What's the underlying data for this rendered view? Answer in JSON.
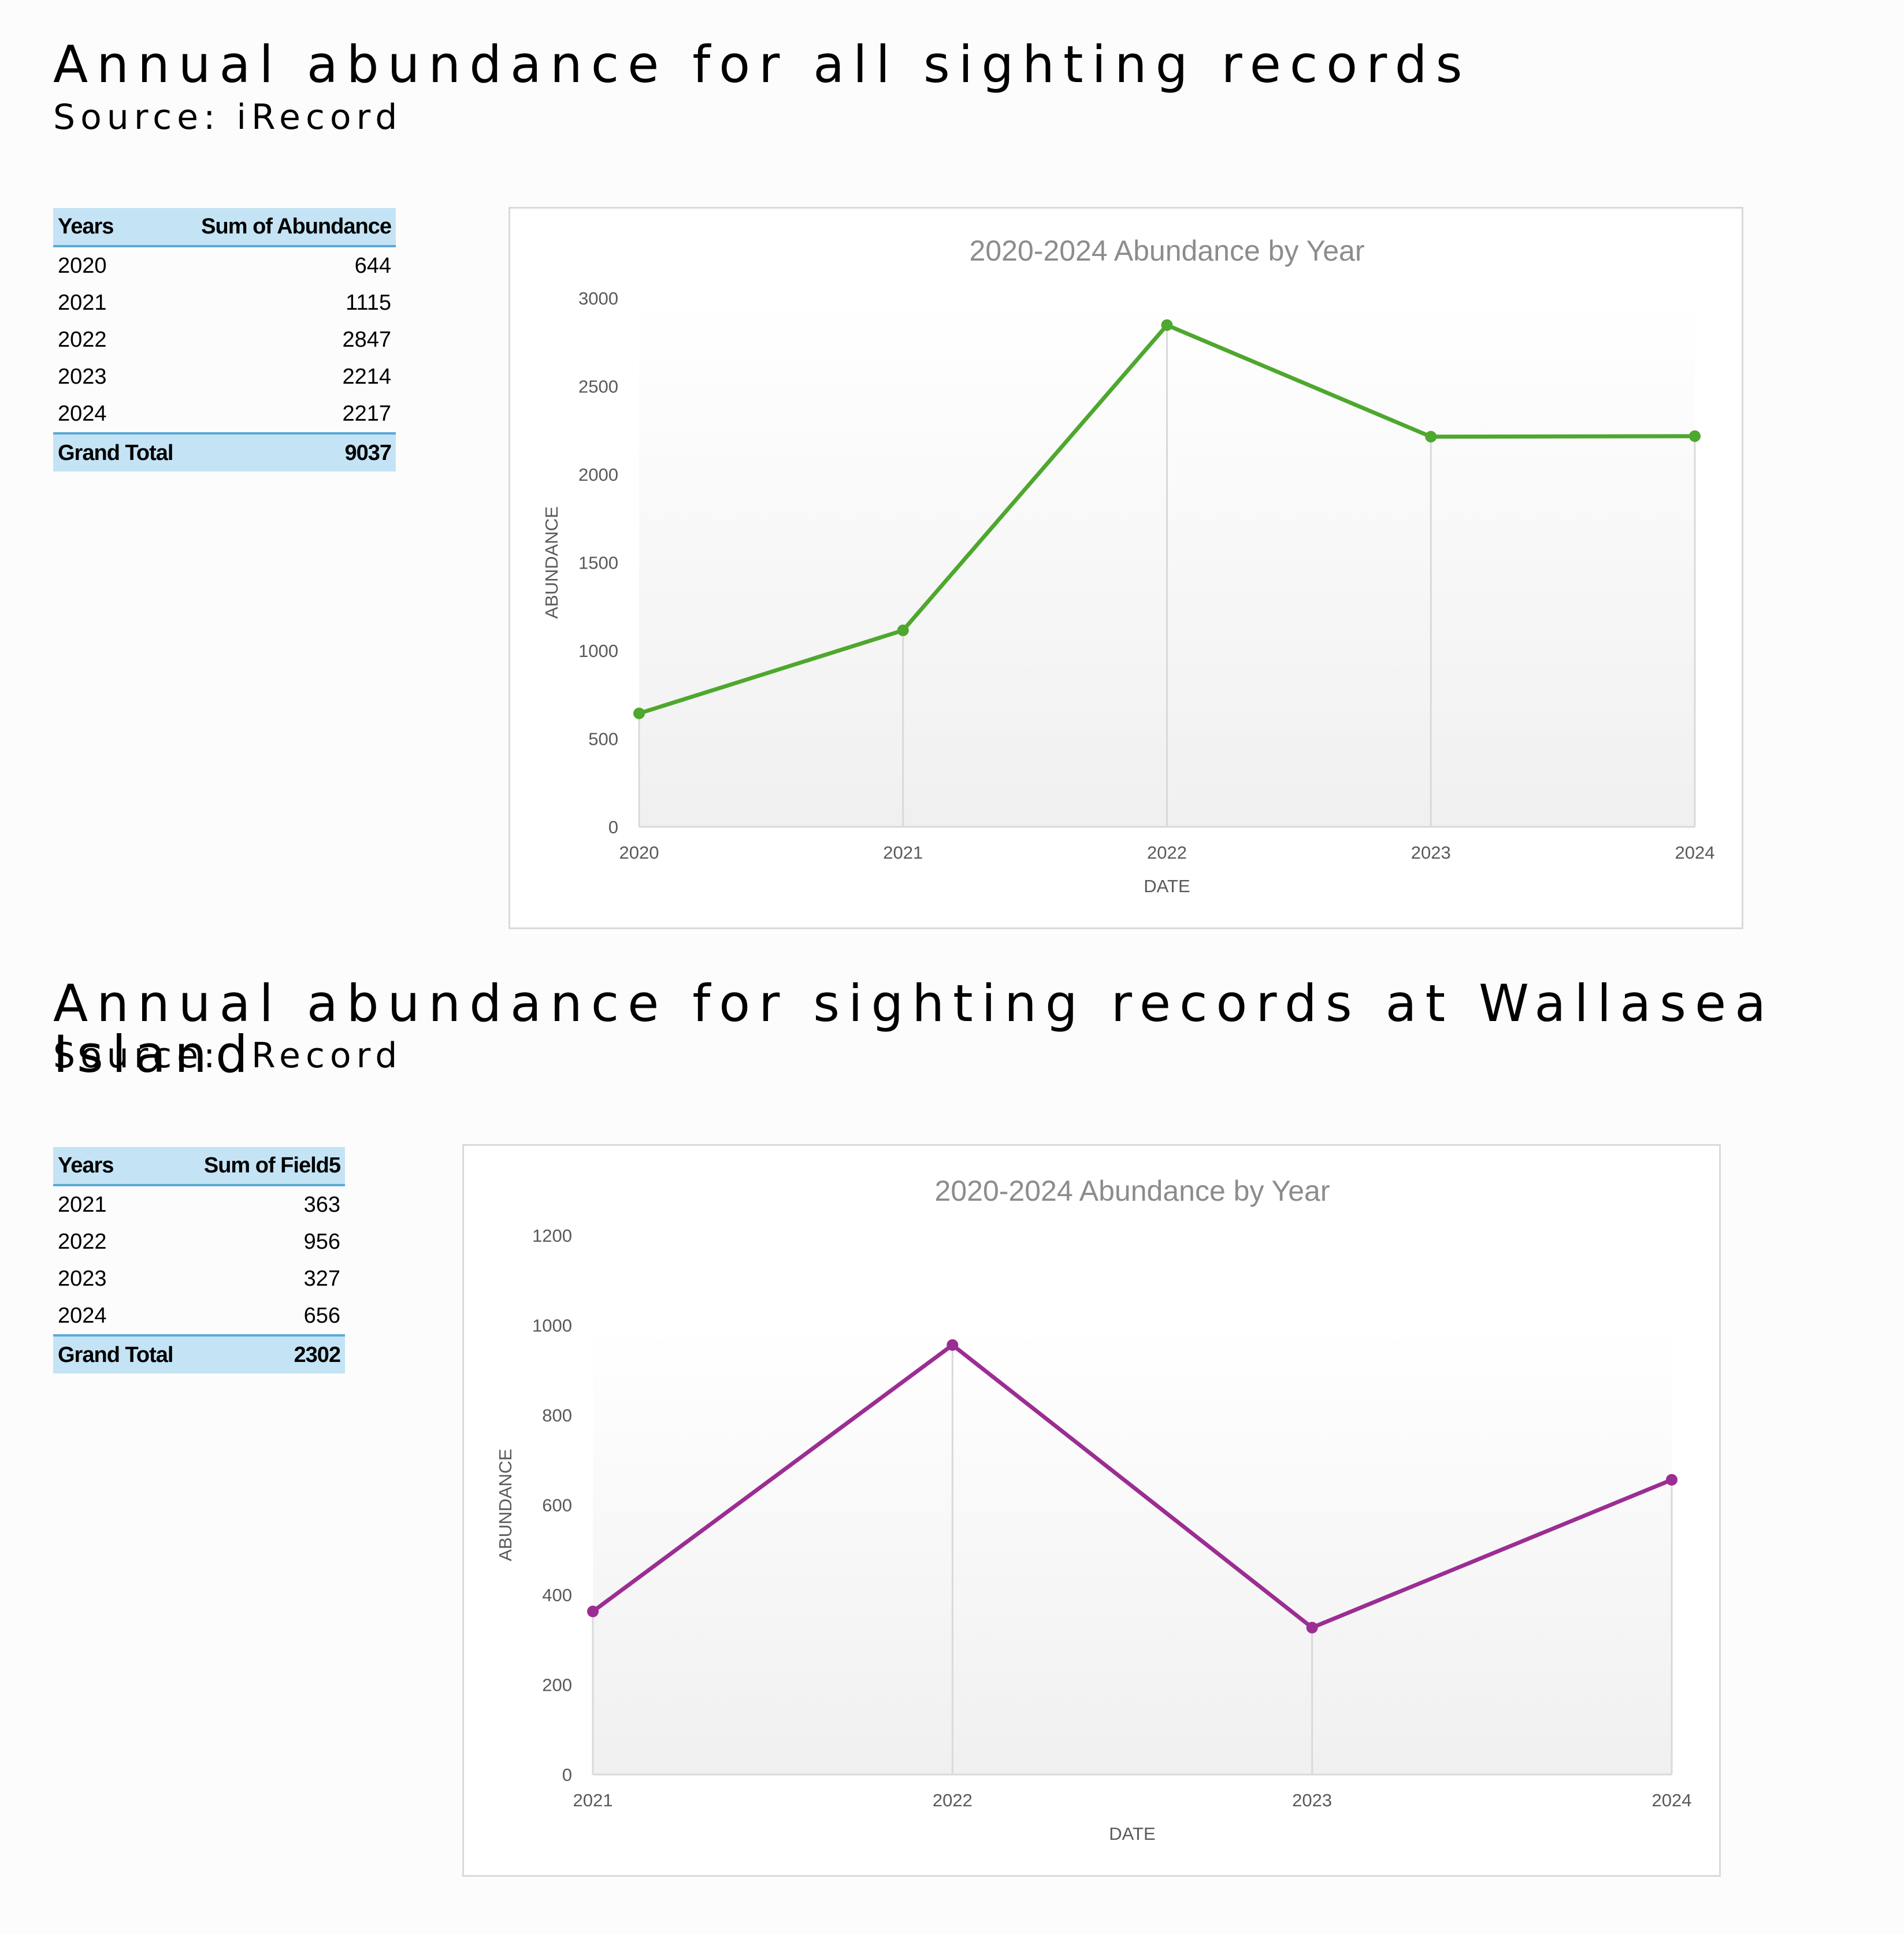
{
  "sections": [
    {
      "title": "Annual abundance for all sighting records",
      "subtitle": "Source: iRecord",
      "table": {
        "headers": [
          "Years",
          "Sum of Abundance"
        ],
        "rows": [
          [
            "2020",
            "644"
          ],
          [
            "2021",
            "1115"
          ],
          [
            "2022",
            "2847"
          ],
          [
            "2023",
            "2214"
          ],
          [
            "2024",
            "2217"
          ]
        ],
        "total": [
          "Grand Total",
          "9037"
        ]
      }
    },
    {
      "title": "Annual abundance for sighting records at Wallasea Island",
      "subtitle": "Source: iRecord",
      "table": {
        "headers": [
          "Years",
          "Sum of Field5"
        ],
        "rows": [
          [
            "2021",
            "363"
          ],
          [
            "2022",
            "956"
          ],
          [
            "2023",
            "327"
          ],
          [
            "2024",
            "656"
          ]
        ],
        "total": [
          "Grand Total",
          "2302"
        ]
      }
    }
  ],
  "chart_data": [
    {
      "type": "line",
      "title": "2020-2024 Abundance by Year",
      "xlabel": "DATE",
      "ylabel": "ABUNDANCE",
      "categories": [
        "2020",
        "2021",
        "2022",
        "2023",
        "2024"
      ],
      "series": [
        {
          "values": [
            644,
            1115,
            2847,
            2214,
            2217
          ]
        }
      ],
      "ylim": [
        0,
        3000
      ],
      "yticks": [
        0,
        500,
        1000,
        1500,
        2000,
        2500,
        3000
      ],
      "color": "#4ea72e",
      "grid": "vertical drop lines at each category",
      "legend": "none"
    },
    {
      "type": "line",
      "title": "2020-2024 Abundance by Year",
      "xlabel": "DATE",
      "ylabel": "ABUNDANCE",
      "categories": [
        "2021",
        "2022",
        "2023",
        "2024"
      ],
      "series": [
        {
          "values": [
            363,
            956,
            327,
            656
          ]
        }
      ],
      "ylim": [
        0,
        1200
      ],
      "yticks": [
        0,
        200,
        400,
        600,
        800,
        1000,
        1200
      ],
      "color": "#9b2d93",
      "grid": "vertical drop lines at each category",
      "legend": "none"
    }
  ]
}
